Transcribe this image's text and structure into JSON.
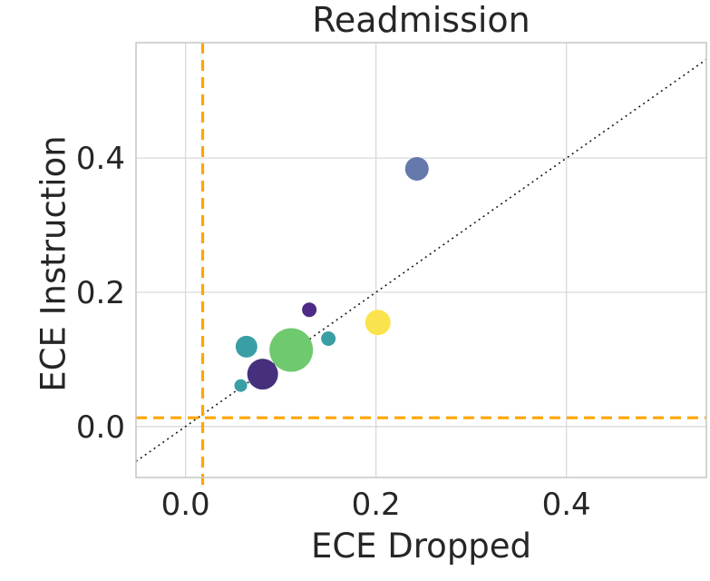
{
  "chart_data": {
    "type": "scatter",
    "title": "Readmission",
    "xlabel": "ECE Dropped",
    "ylabel": "ECE Instruction",
    "xlim": [
      -0.052,
      0.547
    ],
    "ylim": [
      -0.076,
      0.572
    ],
    "xticks": [
      {
        "value": 0.0,
        "label": "0.0"
      },
      {
        "value": 0.2,
        "label": "0.2"
      },
      {
        "value": 0.4,
        "label": "0.4"
      }
    ],
    "yticks": [
      {
        "value": 0.0,
        "label": "0.0"
      },
      {
        "value": 0.2,
        "label": "0.2"
      },
      {
        "value": 0.4,
        "label": "0.4"
      }
    ],
    "grid": true,
    "grid_color": "#d9d9d9",
    "spine_color": "#c9c9c9",
    "text_color": "#262626",
    "identity_line": {
      "color": "#1a1a1a",
      "style": "dotted",
      "width": 1.6
    },
    "threshold_lines": {
      "vertical_x": 0.018,
      "horizontal_y": 0.013,
      "color": "#ffa600",
      "style": "dashed",
      "width": 3.2
    },
    "points": [
      {
        "x": 0.15,
        "y": 0.131,
        "r": 8,
        "color": "#3a9fa5",
        "group": "teal"
      },
      {
        "x": 0.111,
        "y": 0.114,
        "r": 24,
        "color": "#6fc96e",
        "group": "green"
      },
      {
        "x": 0.064,
        "y": 0.119,
        "r": 12,
        "color": "#3a9fa5",
        "group": "teal"
      },
      {
        "x": 0.081,
        "y": 0.078,
        "r": 17,
        "color": "#46307e",
        "group": "purple"
      },
      {
        "x": 0.058,
        "y": 0.061,
        "r": 7,
        "color": "#3a9fa5",
        "group": "teal"
      },
      {
        "x": 0.13,
        "y": 0.174,
        "r": 8,
        "color": "#4c2a85",
        "group": "purple"
      },
      {
        "x": 0.202,
        "y": 0.155,
        "r": 14,
        "color": "#fbe34d",
        "group": "yellow"
      },
      {
        "x": 0.243,
        "y": 0.384,
        "r": 13,
        "color": "#6679ad",
        "group": "slate-blue"
      }
    ]
  }
}
